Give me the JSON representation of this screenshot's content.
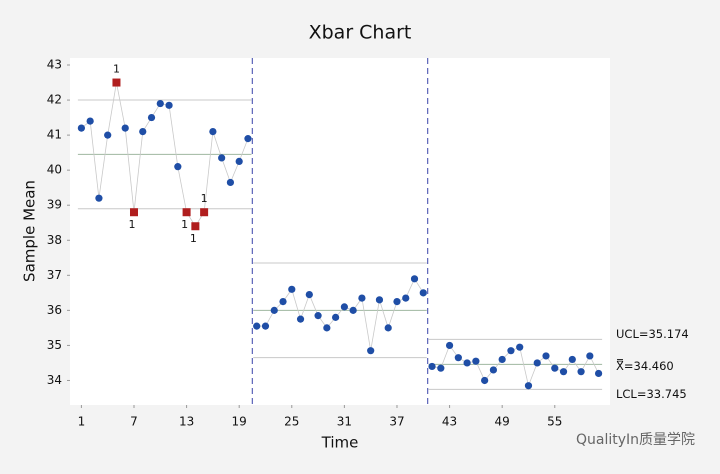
{
  "chart_data": {
    "type": "control",
    "title": "Xbar Chart",
    "x_label": "Time",
    "y_label": "Sample Mean",
    "xlim": [
      -0.3,
      61.3
    ],
    "ylim": [
      33.3,
      43.2
    ],
    "xticks": [
      1,
      7,
      13,
      19,
      25,
      31,
      37,
      43,
      49,
      55
    ],
    "yticks": [
      34,
      35,
      36,
      37,
      38,
      39,
      40,
      41,
      42,
      43
    ],
    "x": [
      1,
      2,
      3,
      4,
      5,
      6,
      7,
      8,
      9,
      10,
      11,
      12,
      13,
      14,
      15,
      16,
      17,
      18,
      19,
      20,
      21,
      22,
      23,
      24,
      25,
      26,
      27,
      28,
      29,
      30,
      31,
      32,
      33,
      34,
      35,
      36,
      37,
      38,
      39,
      40,
      41,
      42,
      43,
      44,
      45,
      46,
      47,
      48,
      49,
      50,
      51,
      52,
      53,
      54,
      55,
      56,
      57,
      58,
      59,
      60
    ],
    "series": [
      {
        "name": "Sample Mean",
        "color": "#1f4ea6",
        "values": [
          41.2,
          41.4,
          39.2,
          41.0,
          42.5,
          41.2,
          38.8,
          41.1,
          41.5,
          41.9,
          41.85,
          40.1,
          38.8,
          38.4,
          38.8,
          41.1,
          40.35,
          39.65,
          40.25,
          40.9,
          35.55,
          35.55,
          36.0,
          36.25,
          36.6,
          35.75,
          36.45,
          35.85,
          35.5,
          35.8,
          36.1,
          36.0,
          36.35,
          34.85,
          36.3,
          35.5,
          36.25,
          36.35,
          36.9,
          36.5,
          34.4,
          34.35,
          35.0,
          34.65,
          34.5,
          34.55,
          34.0,
          34.3,
          34.6,
          34.85,
          34.95,
          33.85,
          34.5,
          34.7,
          34.35,
          34.25,
          34.6,
          34.25,
          34.7,
          34.2
        ]
      }
    ],
    "flagged_points": [
      {
        "index": 4,
        "label": "1"
      },
      {
        "index": 6,
        "label": "1"
      },
      {
        "index": 12,
        "label": "1"
      },
      {
        "index": 13,
        "label": "1"
      },
      {
        "index": 14,
        "label": "1"
      }
    ],
    "flag_color": "#b01e1e",
    "stage_boundaries": [
      20.5,
      40.5
    ],
    "stages": [
      {
        "start": 1,
        "end": 20,
        "ucl": 42.0,
        "cl": 40.45,
        "lcl": 38.9
      },
      {
        "start": 21,
        "end": 40,
        "ucl": 37.35,
        "cl": 36.0,
        "lcl": 34.65
      },
      {
        "start": 41,
        "end": 60,
        "ucl": 35.174,
        "cl": 34.46,
        "lcl": 33.745
      }
    ],
    "limit_labels": [
      "UCL=35.174",
      "X̿=34.460",
      "LCL=33.745"
    ],
    "watermark": "QualityIn质量学院"
  }
}
